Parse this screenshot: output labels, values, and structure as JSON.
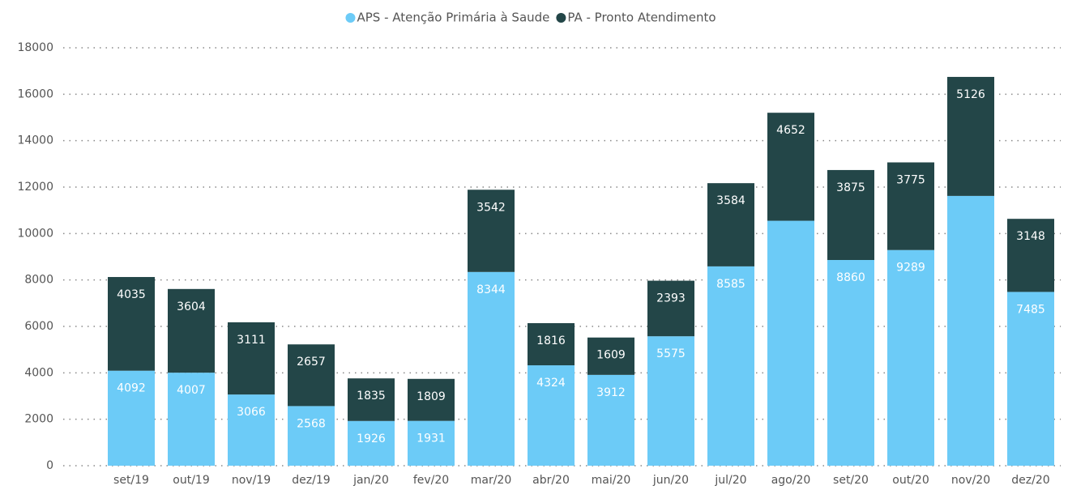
{
  "chart_data": {
    "type": "stacked_bar",
    "categories": [
      "set/19",
      "out/19",
      "nov/19",
      "dez/19",
      "jan/20",
      "fev/20",
      "mar/20",
      "abr/20",
      "mai/20",
      "jun/20",
      "jul/20",
      "ago/20",
      "set/20",
      "out/20",
      "nov/20",
      "dez/20"
    ],
    "series": [
      {
        "name": "APS - Atenção Primária à Saude",
        "color": "#6ccbf7",
        "values": [
          4092,
          4007,
          3066,
          2568,
          1926,
          1931,
          8344,
          4324,
          3912,
          5575,
          8585,
          10550,
          8860,
          9289,
          11620,
          7485
        ],
        "value_labels": [
          "4092",
          "4007",
          "3066",
          "2568",
          "1926",
          "1931",
          "8344",
          "4324",
          "3912",
          "5575",
          "8585",
          null,
          "8860",
          "9289",
          null,
          "7485"
        ]
      },
      {
        "name": "PA - Pronto Atendimento",
        "color": "#234648",
        "values": [
          4035,
          3604,
          3111,
          2657,
          1835,
          1809,
          3542,
          1816,
          1609,
          2393,
          3584,
          4652,
          3875,
          3775,
          5126,
          3148
        ]
      }
    ],
    "ylim": [
      0,
      18000
    ],
    "yticks": [
      0,
      2000,
      4000,
      6000,
      8000,
      10000,
      12000,
      14000,
      16000,
      18000
    ],
    "grid": true,
    "legend": "top"
  }
}
